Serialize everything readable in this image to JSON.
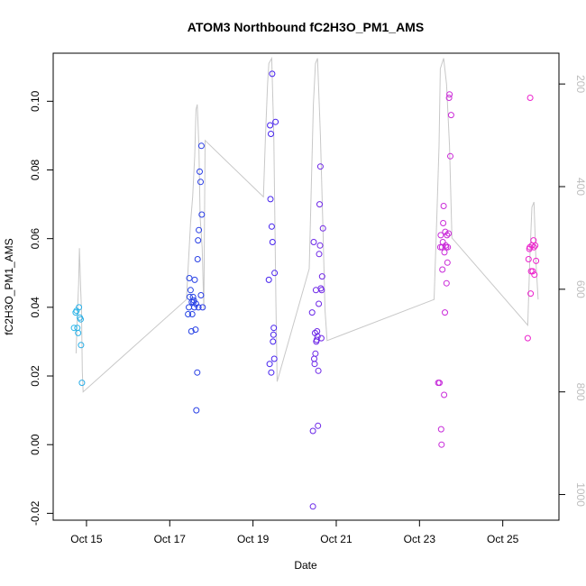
{
  "chart_data": {
    "type": "scatter",
    "title": "ATOM3 Northbound fC2H3O_PM1_AMS",
    "xlabel": "Date",
    "ylabel": "fC2H3O_PM1_AMS",
    "xlim": [
      14.2,
      26.35
    ],
    "ylim": [
      -0.022,
      0.114
    ],
    "y2lim": [
      1050,
      140
    ],
    "x_ticks": [
      {
        "value": 15,
        "label": "Oct 15"
      },
      {
        "value": 17,
        "label": "Oct 17"
      },
      {
        "value": 19,
        "label": "Oct 19"
      },
      {
        "value": 21,
        "label": "Oct 21"
      },
      {
        "value": 23,
        "label": "Oct 23"
      },
      {
        "value": 25,
        "label": "Oct 25"
      }
    ],
    "y_ticks": [
      -0.02,
      0.0,
      0.02,
      0.04,
      0.06,
      0.08,
      0.1
    ],
    "y_tick_labels": [
      "-0.02",
      "0.00",
      "0.02",
      "0.04",
      "0.06",
      "0.08",
      "0.10"
    ],
    "y2_ticks": [
      200,
      400,
      600,
      800,
      1000
    ],
    "y2_tick_labels": [
      "200",
      "400",
      "600",
      "800",
      "1000"
    ],
    "color_gradient": [
      "#29b6e8",
      "#1f4fe0",
      "#3a1ff0",
      "#8a2be2",
      "#c92ad9",
      "#ee22cc"
    ],
    "pressure_line_color": "#c8c8c8",
    "pressure_trace": [
      [
        14.75,
        725
      ],
      [
        14.78,
        650
      ],
      [
        14.81,
        590
      ],
      [
        14.83,
        520
      ],
      [
        14.86,
        600
      ],
      [
        14.88,
        640
      ],
      [
        14.9,
        760
      ],
      [
        14.92,
        800
      ],
      [
        17.4,
        620
      ],
      [
        17.5,
        470
      ],
      [
        17.55,
        420
      ],
      [
        17.6,
        340
      ],
      [
        17.63,
        250
      ],
      [
        17.66,
        240
      ],
      [
        17.7,
        320
      ],
      [
        17.73,
        460
      ],
      [
        17.78,
        520
      ],
      [
        17.82,
        640
      ],
      [
        17.85,
        310
      ],
      [
        19.25,
        420
      ],
      [
        19.3,
        300
      ],
      [
        19.35,
        200
      ],
      [
        19.38,
        160
      ],
      [
        19.45,
        150
      ],
      [
        19.5,
        300
      ],
      [
        19.55,
        620
      ],
      [
        19.58,
        780
      ],
      [
        20.35,
        560
      ],
      [
        20.45,
        240
      ],
      [
        20.5,
        160
      ],
      [
        20.55,
        150
      ],
      [
        20.62,
        300
      ],
      [
        20.68,
        480
      ],
      [
        20.73,
        640
      ],
      [
        20.78,
        700
      ],
      [
        23.35,
        620
      ],
      [
        23.42,
        450
      ],
      [
        23.47,
        320
      ],
      [
        23.5,
        170
      ],
      [
        23.58,
        150
      ],
      [
        23.65,
        200
      ],
      [
        23.72,
        320
      ],
      [
        23.78,
        500
      ],
      [
        25.6,
        670
      ],
      [
        25.65,
        540
      ],
      [
        25.7,
        440
      ],
      [
        25.75,
        430
      ],
      [
        25.8,
        550
      ],
      [
        25.85,
        620
      ]
    ],
    "series": [
      {
        "name": "fC2H3O_PM1_AMS",
        "points": [
          [
            14.7,
            0.034
          ],
          [
            14.74,
            0.0385
          ],
          [
            14.76,
            0.039
          ],
          [
            14.78,
            0.034
          ],
          [
            14.8,
            0.0325
          ],
          [
            14.82,
            0.04
          ],
          [
            14.84,
            0.037
          ],
          [
            14.86,
            0.0365
          ],
          [
            14.87,
            0.029
          ],
          [
            14.89,
            0.018
          ],
          [
            17.44,
            0.038
          ],
          [
            17.46,
            0.04
          ],
          [
            17.47,
            0.0485
          ],
          [
            17.48,
            0.043
          ],
          [
            17.5,
            0.045
          ],
          [
            17.52,
            0.033
          ],
          [
            17.53,
            0.0415
          ],
          [
            17.54,
            0.038
          ],
          [
            17.56,
            0.043
          ],
          [
            17.57,
            0.0415
          ],
          [
            17.58,
            0.042
          ],
          [
            17.59,
            0.04
          ],
          [
            17.6,
            0.048
          ],
          [
            17.62,
            0.0335
          ],
          [
            17.63,
            0.041
          ],
          [
            17.64,
            0.01
          ],
          [
            17.66,
            0.021
          ],
          [
            17.67,
            0.054
          ],
          [
            17.68,
            0.0595
          ],
          [
            17.69,
            0.04
          ],
          [
            17.7,
            0.0625
          ],
          [
            17.72,
            0.0795
          ],
          [
            17.74,
            0.0765
          ],
          [
            17.75,
            0.0435
          ],
          [
            17.76,
            0.087
          ],
          [
            17.77,
            0.067
          ],
          [
            17.79,
            0.04
          ],
          [
            19.38,
            0.048
          ],
          [
            19.4,
            0.0235
          ],
          [
            19.41,
            0.093
          ],
          [
            19.42,
            0.0715
          ],
          [
            19.43,
            0.0905
          ],
          [
            19.44,
            0.021
          ],
          [
            19.45,
            0.0635
          ],
          [
            19.46,
            0.108
          ],
          [
            19.47,
            0.059
          ],
          [
            19.48,
            0.03
          ],
          [
            19.49,
            0.032
          ],
          [
            19.5,
            0.034
          ],
          [
            19.51,
            0.025
          ],
          [
            19.52,
            0.05
          ],
          [
            19.54,
            0.094
          ],
          [
            20.42,
            0.0385
          ],
          [
            20.44,
            0.004
          ],
          [
            20.46,
            0.059
          ],
          [
            20.47,
            0.025
          ],
          [
            20.48,
            0.0235
          ],
          [
            20.49,
            0.0325
          ],
          [
            20.5,
            0.0265
          ],
          [
            20.51,
            0.045
          ],
          [
            20.52,
            0.03
          ],
          [
            20.53,
            0.0305
          ],
          [
            20.54,
            0.033
          ],
          [
            20.55,
            0.0315
          ],
          [
            20.56,
            0.0055
          ],
          [
            20.57,
            0.0215
          ],
          [
            20.58,
            0.041
          ],
          [
            20.59,
            0.0555
          ],
          [
            20.6,
            0.07
          ],
          [
            20.61,
            0.058
          ],
          [
            20.62,
            0.081
          ],
          [
            20.63,
            0.0455
          ],
          [
            20.64,
            0.031
          ],
          [
            20.65,
            0.045
          ],
          [
            20.66,
            0.049
          ],
          [
            20.68,
            0.063
          ],
          [
            20.44,
            -0.018
          ],
          [
            23.45,
            0.018
          ],
          [
            23.48,
            0.018
          ],
          [
            23.5,
            0.0575
          ],
          [
            23.51,
            0.061
          ],
          [
            23.52,
            0.0045
          ],
          [
            23.53,
            0.0
          ],
          [
            23.54,
            0.0575
          ],
          [
            23.55,
            0.051
          ],
          [
            23.56,
            0.059
          ],
          [
            23.57,
            0.0645
          ],
          [
            23.58,
            0.0695
          ],
          [
            23.59,
            0.0145
          ],
          [
            23.6,
            0.056
          ],
          [
            23.61,
            0.0385
          ],
          [
            23.62,
            0.062
          ],
          [
            23.63,
            0.058
          ],
          [
            23.64,
            0.0575
          ],
          [
            23.65,
            0.047
          ],
          [
            23.66,
            0.061
          ],
          [
            23.67,
            0.053
          ],
          [
            23.68,
            0.0575
          ],
          [
            23.7,
            0.0615
          ],
          [
            23.71,
            0.101
          ],
          [
            23.72,
            0.102
          ],
          [
            23.74,
            0.084
          ],
          [
            23.76,
            0.096
          ],
          [
            25.6,
            0.031
          ],
          [
            25.62,
            0.054
          ],
          [
            25.64,
            0.057
          ],
          [
            25.65,
            0.0575
          ],
          [
            25.66,
            0.101
          ],
          [
            25.67,
            0.044
          ],
          [
            25.68,
            0.0505
          ],
          [
            25.7,
            0.058
          ],
          [
            25.72,
            0.0505
          ],
          [
            25.74,
            0.0595
          ],
          [
            25.75,
            0.0575
          ],
          [
            25.76,
            0.0495
          ],
          [
            25.78,
            0.058
          ],
          [
            25.8,
            0.0535
          ]
        ]
      }
    ]
  }
}
